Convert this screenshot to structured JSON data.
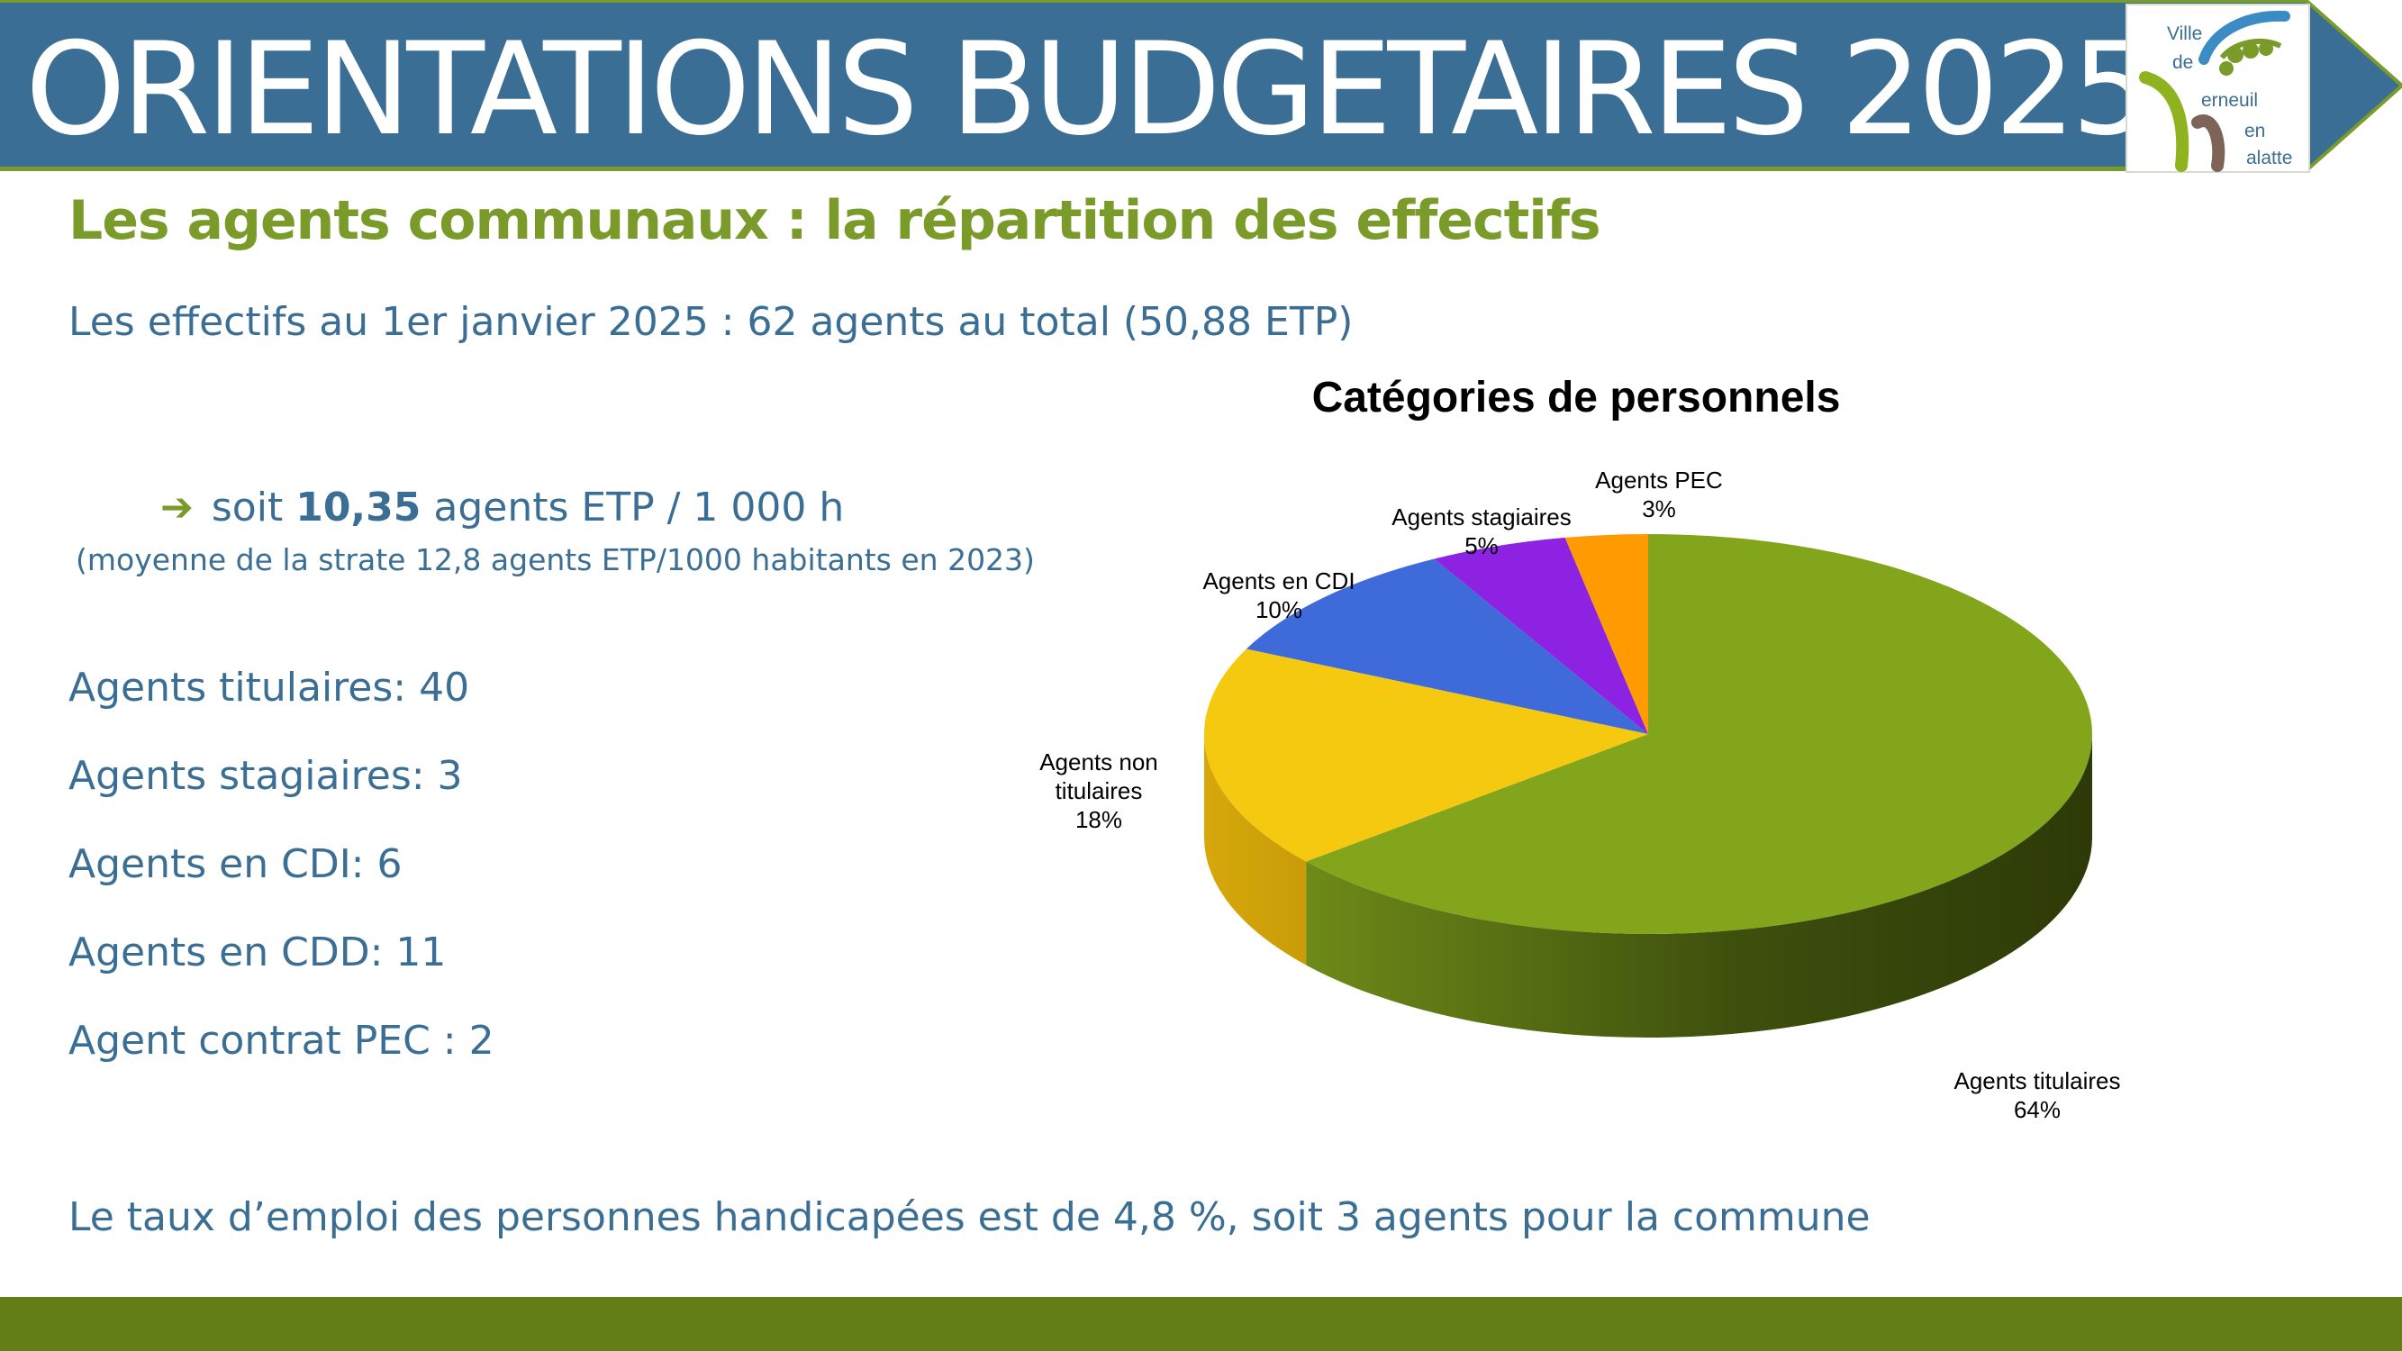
{
  "header": {
    "title": "ORIENTATIONS BUDGETAIRES 2025",
    "logo": {
      "line1": "Ville",
      "line2": "de",
      "line3": "erneuil",
      "line4": "en",
      "line5": "alatte"
    }
  },
  "subtitle": "Les agents communaux : la répartition des effectifs",
  "effectifs_line": "Les effectifs au 1er janvier 2025  : 62 agents au total  (50,88 ETP)",
  "soit": {
    "prefix": "soit",
    "value": "10,35",
    "suffix": "agents ETP / 1 000 h"
  },
  "moyenne": "(moyenne de la strate 12,8 agents ETP/1000 habitants en 2023)",
  "agents": [
    "Agents titulaires: 40",
    "Agents stagiaires: 3",
    "Agents en CDI: 6",
    "Agents en CDD: 11",
    "Agent contrat PEC : 2"
  ],
  "footer_text": "Le taux d’emploi des personnes handicapées est de 4,8 %, soit 3 agents pour la commune",
  "colors": {
    "header_bg": "#3b6e94",
    "accent_green": "#7a9b2a",
    "bottom_bar": "#647e17",
    "text_blue": "#3b6e94"
  },
  "chart_data": {
    "type": "pie",
    "title": "Catégories de personnels",
    "slices": [
      {
        "label": "Agents titulaires",
        "value": 64,
        "pct": "64%",
        "color": "#83a51c"
      },
      {
        "label": "Agents non titulaires",
        "value": 18,
        "pct": "18%",
        "color": "#f5c910"
      },
      {
        "label": "Agents en CDI",
        "value": 10,
        "pct": "10%",
        "color": "#3f6ad9"
      },
      {
        "label": "Agents stagiaires",
        "value": 5,
        "pct": "5%",
        "color": "#8e22e3"
      },
      {
        "label": "Agents PEC",
        "value": 3,
        "pct": "3%",
        "color": "#ff9a00"
      }
    ]
  }
}
